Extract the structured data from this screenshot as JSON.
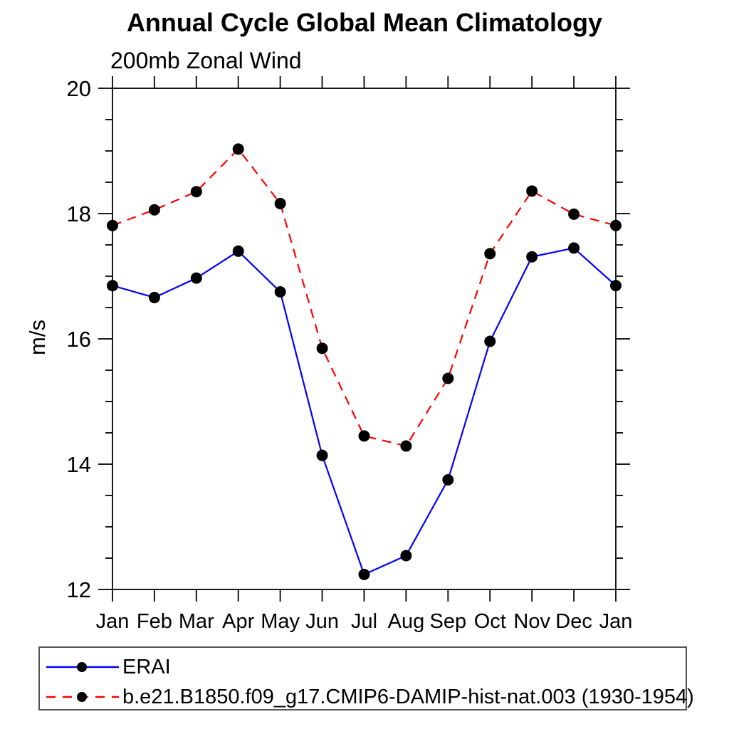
{
  "title": "Annual Cycle Global Mean Climatology",
  "subtitle": "200mb Zonal Wind",
  "chart_data": {
    "type": "line",
    "categories": [
      "Jan",
      "Feb",
      "Mar",
      "Apr",
      "May",
      "Jun",
      "Jul",
      "Aug",
      "Sep",
      "Oct",
      "Nov",
      "Dec",
      "Jan"
    ],
    "xlabel": "",
    "ylabel": "m/s",
    "ylim": [
      12,
      20
    ],
    "y_major_ticks": [
      12,
      14,
      16,
      18,
      20
    ],
    "y_minor_step": 0.5,
    "grid": false,
    "legend_position": "bottom-left-box",
    "series": [
      {
        "name": "ERAI",
        "color": "#0000ff",
        "line_style": "solid",
        "marker": "filled-circle",
        "marker_color": "#000000",
        "values": [
          16.85,
          16.66,
          16.97,
          17.4,
          16.75,
          14.14,
          12.24,
          12.54,
          13.75,
          15.96,
          17.31,
          17.45,
          16.85
        ]
      },
      {
        "name": "b.e21.B1850.f09_g17.CMIP6-DAMIP-hist-nat.003 (1930-1954)",
        "color": "#ff0000",
        "line_style": "dashed",
        "marker": "filled-circle",
        "marker_color": "#000000",
        "values": [
          17.81,
          18.06,
          18.35,
          19.03,
          18.16,
          15.85,
          14.45,
          14.29,
          15.37,
          17.36,
          18.36,
          17.99,
          17.81
        ]
      }
    ]
  }
}
